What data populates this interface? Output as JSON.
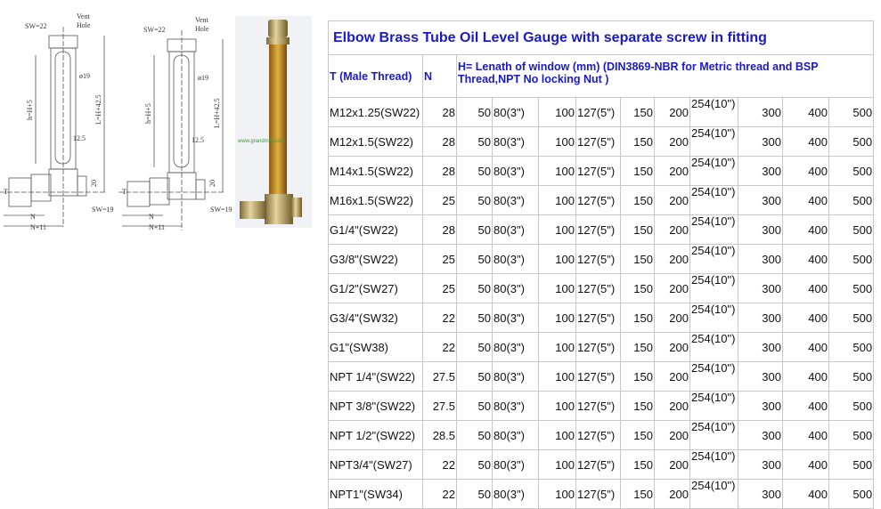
{
  "drawing": {
    "labels": {
      "sw_top": "SW=22",
      "vent": "Vent",
      "hole": "Hole",
      "dia": "ø19",
      "h": "h=H+5",
      "l": "L=H+42.5",
      "width": "12.5",
      "base": "20",
      "t": "T",
      "sw_side": "SW=19",
      "n": "N",
      "n11": "N+11"
    },
    "photo_watermark": "www.grandmfg.com"
  },
  "table": {
    "title": "Elbow Brass  Tube Oil Level Gauge with separate screw in fitting",
    "headers": {
      "thread": "T (Male Thread)",
      "n": "N",
      "h": "H= Lenath of window (mm)  (DIN3869-NBR for Metric thread and BSP Thread,NPT  No locking Nut )"
    },
    "h_values": [
      "50",
      "80(3\")",
      "100",
      "127(5\")",
      "150",
      "200",
      "254(10\")",
      "300",
      "400",
      "500"
    ],
    "rows": [
      {
        "thread": "M12x1.25(SW22)",
        "n": "28"
      },
      {
        "thread": "M12x1.5(SW22)",
        "n": "28"
      },
      {
        "thread": "M14x1.5(SW22)",
        "n": "28"
      },
      {
        "thread": "M16x1.5(SW22)",
        "n": "25"
      },
      {
        "thread": "G1/4\"(SW22)",
        "n": "28"
      },
      {
        "thread": "G3/8\"(SW22)",
        "n": "25"
      },
      {
        "thread": "G1/2\"(SW27)",
        "n": "25"
      },
      {
        "thread": "G3/4\"(SW32)",
        "n": "22"
      },
      {
        "thread": "G1\"(SW38)",
        "n": "22"
      },
      {
        "thread": "NPT 1/4\"(SW22)",
        "n": "27.5"
      },
      {
        "thread": "NPT 3/8\"(SW22)",
        "n": "27.5"
      },
      {
        "thread": "NPT 1/2\"(SW22)",
        "n": "28.5"
      },
      {
        "thread": "NPT3/4\"(SW27)",
        "n": "22"
      },
      {
        "thread": "NPT1\"(SW34)",
        "n": "22"
      }
    ]
  }
}
